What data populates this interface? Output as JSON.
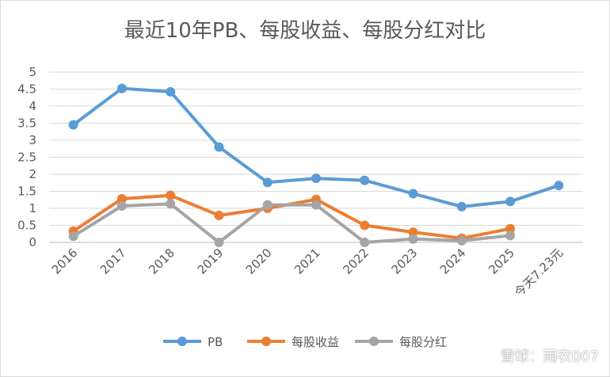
{
  "chart_data": {
    "type": "line",
    "title": "最近10年PB、每股收益、每股分红对比",
    "categories": [
      "2016",
      "2017",
      "2018",
      "2019",
      "2020",
      "2021",
      "2022",
      "2023",
      "2024",
      "2025",
      "今天7.23元"
    ],
    "ylim": [
      0,
      5
    ],
    "yticks": [
      "0",
      "0.5",
      "1",
      "1.5",
      "2",
      "2.5",
      "3",
      "3.5",
      "4",
      "4.5",
      "5"
    ],
    "grid": true,
    "legend_position": "bottom",
    "series": [
      {
        "name": "PB",
        "color": "#5b9bd5",
        "values": [
          3.45,
          4.52,
          4.42,
          2.8,
          1.76,
          1.88,
          1.82,
          1.43,
          1.05,
          1.2,
          1.67
        ]
      },
      {
        "name": "每股收益",
        "color": "#ed7d31",
        "values": [
          0.33,
          1.28,
          1.38,
          0.79,
          1.0,
          1.26,
          0.5,
          0.3,
          0.12,
          0.4,
          null
        ]
      },
      {
        "name": "每股分红",
        "color": "#a5a5a5",
        "values": [
          0.18,
          1.07,
          1.13,
          0.0,
          1.1,
          1.1,
          0.0,
          0.1,
          0.05,
          0.2,
          null
        ]
      }
    ]
  },
  "watermark": "雪球：雨农007"
}
